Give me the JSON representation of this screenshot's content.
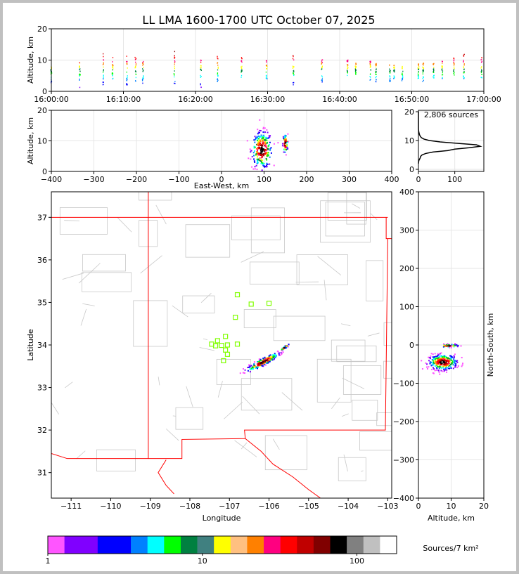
{
  "title": "LL LMA 1600-1700 UTC October 07, 2025",
  "chart_data": [
    {
      "type": "scatter",
      "panel": "time-altitude",
      "ylabel": "Altitude, km",
      "ylim": [
        0,
        20
      ],
      "y_ticks": [
        0,
        10,
        20
      ],
      "x_ticks": [
        "16:00:00",
        "16:10:00",
        "16:20:00",
        "16:30:00",
        "16:40:00",
        "16:50:00",
        "17:00:00"
      ],
      "xlim_minutes": [
        0,
        60
      ],
      "columns": [
        {
          "t": 0.0,
          "ymin": 2,
          "ymax": 8
        },
        {
          "t": 6.6,
          "ymin": 1,
          "ymax": 11
        },
        {
          "t": 12.0,
          "ymin": 2,
          "ymax": 12
        },
        {
          "t": 14.2,
          "ymin": 3,
          "ymax": 11
        },
        {
          "t": 17.5,
          "ymin": 1,
          "ymax": 12
        },
        {
          "t": 19.5,
          "ymin": 3,
          "ymax": 11
        },
        {
          "t": 21.2,
          "ymin": 2,
          "ymax": 11
        },
        {
          "t": 28.5,
          "ymin": 2,
          "ymax": 13
        },
        {
          "t": 34.6,
          "ymin": 1,
          "ymax": 10
        },
        {
          "t": 38.5,
          "ymin": 3,
          "ymax": 12
        },
        {
          "t": 44.0,
          "ymin": 4,
          "ymax": 11
        },
        {
          "t": 49.8,
          "ymin": 3,
          "ymax": 10
        },
        {
          "t": 56.0,
          "ymin": 2,
          "ymax": 12
        },
        {
          "t": 62.6,
          "ymin": 2,
          "ymax": 11
        },
        {
          "t": 68.5,
          "ymin": 5,
          "ymax": 10
        },
        {
          "t": 70.4,
          "ymin": 5,
          "ymax": 9
        },
        {
          "t": 73.8,
          "ymin": 3,
          "ymax": 10
        },
        {
          "t": 75.1,
          "ymin": 3,
          "ymax": 9
        },
        {
          "t": 78.3,
          "ymin": 3,
          "ymax": 9
        },
        {
          "t": 79.3,
          "ymin": 4,
          "ymax": 9
        },
        {
          "t": 81.2,
          "ymin": 3,
          "ymax": 8
        },
        {
          "t": 84.9,
          "ymin": 4,
          "ymax": 9
        },
        {
          "t": 86.0,
          "ymin": 3,
          "ymax": 9
        },
        {
          "t": 88.4,
          "ymin": 4,
          "ymax": 9
        },
        {
          "t": 90.4,
          "ymin": 4,
          "ymax": 10
        },
        {
          "t": 93.1,
          "ymin": 5,
          "ymax": 11
        },
        {
          "t": 95.4,
          "ymin": 4,
          "ymax": 12
        },
        {
          "t": 99.5,
          "ymin": 3,
          "ymax": 11
        }
      ]
    },
    {
      "type": "scatter",
      "panel": "east-west-altitude",
      "xlabel": "East-West, km",
      "ylabel": "Altitude, km",
      "xlim": [
        -400,
        400
      ],
      "ylim": [
        0,
        20
      ],
      "x_ticks": [
        -400,
        -300,
        -200,
        -100,
        0,
        100,
        200,
        300,
        400
      ],
      "y_ticks": [
        0,
        10,
        20
      ],
      "clusters": [
        {
          "x": 95,
          "y": 7,
          "sx": 12,
          "sy": 3,
          "n": 260
        },
        {
          "x": 150,
          "y": 9,
          "sx": 3,
          "sy": 1.6,
          "n": 60
        }
      ]
    },
    {
      "type": "line",
      "panel": "altitude-histogram",
      "label": "2,806 sources",
      "xlim": [
        0,
        180
      ],
      "ylim": [
        0,
        20
      ],
      "x_ticks": [
        0,
        100
      ],
      "y_ticks": [
        0,
        10,
        20
      ],
      "x": [
        0,
        1,
        3,
        5,
        6,
        10,
        20,
        40,
        80,
        100,
        140,
        170,
        160,
        110,
        60,
        30,
        15,
        8,
        5,
        3,
        2,
        1,
        0,
        0
      ],
      "y": [
        2,
        3,
        3.5,
        4,
        4.5,
        5,
        5.5,
        6,
        6.5,
        7,
        7.5,
        8,
        8.5,
        9,
        9.5,
        10,
        10.5,
        11,
        11.5,
        12,
        12.5,
        13,
        14,
        20
      ]
    },
    {
      "type": "scatter",
      "panel": "plan-view",
      "xlabel": "Longitude",
      "ylabel": "Latitude",
      "xlim": [
        -111.5,
        -102.9
      ],
      "ylim": [
        30.4,
        37.6
      ],
      "x_ticks": [
        -111,
        -110,
        -109,
        -108,
        -107,
        -106,
        -105,
        -104,
        -103
      ],
      "y_ticks": [
        31,
        32,
        33,
        34,
        35,
        36,
        37
      ],
      "stations": [
        {
          "lon": -106.8,
          "lat": 35.18
        },
        {
          "lon": -106.45,
          "lat": 34.96
        },
        {
          "lon": -106.0,
          "lat": 34.98
        },
        {
          "lon": -106.85,
          "lat": 34.65
        },
        {
          "lon": -107.1,
          "lat": 34.2
        },
        {
          "lon": -107.3,
          "lat": 34.1
        },
        {
          "lon": -107.45,
          "lat": 34.02
        },
        {
          "lon": -107.35,
          "lat": 33.98
        },
        {
          "lon": -107.2,
          "lat": 33.99
        },
        {
          "lon": -107.05,
          "lat": 34.0
        },
        {
          "lon": -107.1,
          "lat": 33.88
        },
        {
          "lon": -107.05,
          "lat": 33.78
        },
        {
          "lon": -107.15,
          "lat": 33.63
        },
        {
          "lon": -106.8,
          "lat": 34.02
        }
      ],
      "clusters": [
        {
          "lon": -106.15,
          "lat": 33.6,
          "slon": 0.18,
          "slat": 0.09,
          "n": 200
        },
        {
          "lon": -105.6,
          "lat": 33.94,
          "slon": 0.05,
          "slat": 0.03,
          "n": 40
        }
      ]
    },
    {
      "type": "scatter",
      "panel": "altitude-north-south",
      "xlabel": "Altitude, km",
      "ylabel": "North-South, km",
      "xlim": [
        0,
        20
      ],
      "ylim": [
        -400,
        400
      ],
      "x_ticks": [
        0,
        10,
        20
      ],
      "y_ticks": [
        -400,
        -300,
        -200,
        -100,
        0,
        100,
        200,
        300,
        400
      ],
      "clusters": [
        {
          "x": 7.5,
          "y": -45,
          "sx": 2.2,
          "sy": 10,
          "n": 300
        },
        {
          "x": 9.5,
          "y": -2,
          "sx": 1.5,
          "sy": 2,
          "n": 50
        }
      ]
    }
  ],
  "colorbar": {
    "label": "Sources/7 km²",
    "tick_labels": [
      "1",
      "10",
      "100"
    ],
    "colors": [
      "#ff55ff",
      "#8000ff",
      "#8000ff",
      "#0000ff",
      "#0000ff",
      "#0080ff",
      "#00ffff",
      "#00ff00",
      "#008040",
      "#408080",
      "#ffff00",
      "#ffc080",
      "#ff8000",
      "#ff0080",
      "#ff0000",
      "#c00000",
      "#800000",
      "#000000",
      "#808080",
      "#c0c0c0",
      "#ffffff"
    ]
  }
}
